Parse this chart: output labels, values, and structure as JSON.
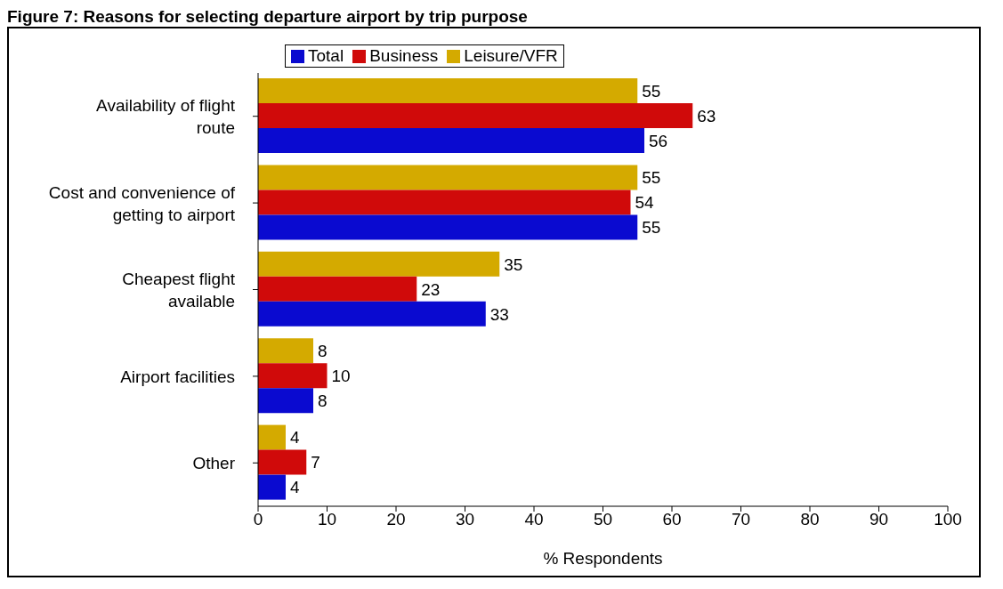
{
  "chart_data": {
    "type": "bar",
    "orientation": "horizontal",
    "title": "Figure 7: Reasons for selecting departure airport by trip purpose",
    "xlabel": "% Respondents",
    "categories": [
      "Availability of flight route",
      "Cost and convenience of getting to airport",
      "Cheapest flight available",
      "Airport facilities",
      "Other"
    ],
    "series": [
      {
        "name": "Total",
        "color": "#0a0ad0",
        "values": [
          56,
          55,
          33,
          8,
          4
        ]
      },
      {
        "name": "Business",
        "color": "#d00a0a",
        "values": [
          63,
          54,
          23,
          10,
          7
        ]
      },
      {
        "name": "Leisure/VFR",
        "color": "#d4aa00",
        "values": [
          55,
          55,
          35,
          8,
          4
        ]
      }
    ],
    "xlim": [
      0,
      100
    ],
    "xticks": [
      0,
      10,
      20,
      30,
      40,
      50,
      60,
      70,
      80,
      90,
      100
    ],
    "data_labels": true,
    "grid": false,
    "legend": "top"
  }
}
